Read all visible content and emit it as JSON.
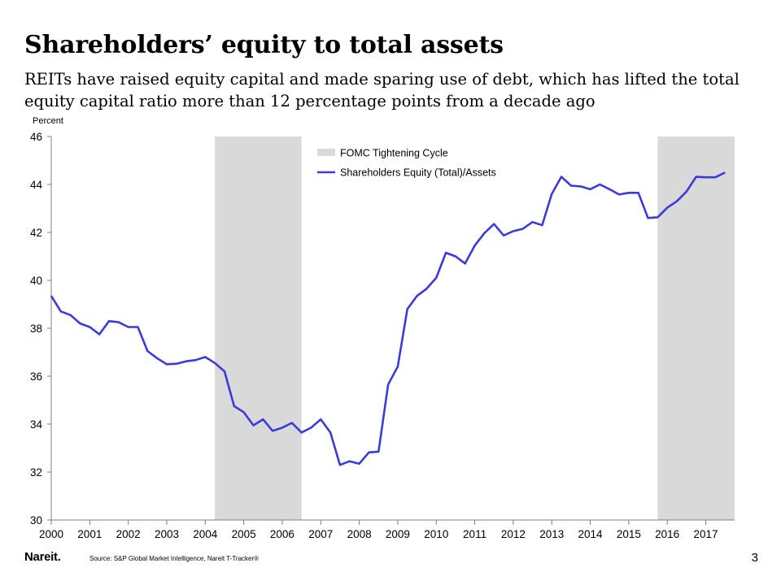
{
  "header": {
    "title": "Shareholders’ equity to total assets",
    "subtitle": "REITs have raised equity capital and made sparing use of debt, which has lifted the total equity capital ratio more than 12 percentage points from a decade ago"
  },
  "chart_data": {
    "type": "line",
    "title": "",
    "ylabel": "Percent",
    "xlabel": "",
    "ylim": [
      30,
      46
    ],
    "xlim": [
      2000,
      2017.75
    ],
    "yticks": [
      30,
      32,
      34,
      36,
      38,
      40,
      42,
      44,
      46
    ],
    "xtick_labels": [
      "2000",
      "2001",
      "2002",
      "2003",
      "2004",
      "2005",
      "2006",
      "2007",
      "2008",
      "2009",
      "2010",
      "2011",
      "2012",
      "2013",
      "2014",
      "2015",
      "2016",
      "2017"
    ],
    "grid": false,
    "legend_placement": "top, inside plot",
    "legend": [
      {
        "label": "FOMC Tightening Cycle",
        "kind": "shaded",
        "color": "#d9d9d9"
      },
      {
        "label": "Shareholders Equity (Total)/Assets",
        "kind": "line",
        "color": "#3b3bdb"
      }
    ],
    "shaded_periods": [
      {
        "name": "FOMC Tightening Cycle",
        "start": 2004.25,
        "end": 2006.5
      },
      {
        "name": "FOMC Tightening Cycle",
        "start": 2015.75,
        "end": 2017.75
      }
    ],
    "series": [
      {
        "name": "Shareholders Equity (Total)/Assets",
        "color": "#3b3bdb",
        "points": [
          [
            2000.0,
            39.35
          ],
          [
            2000.25,
            38.7
          ],
          [
            2000.5,
            38.55
          ],
          [
            2000.75,
            38.2
          ],
          [
            2001.0,
            38.05
          ],
          [
            2001.25,
            37.75
          ],
          [
            2001.5,
            38.3
          ],
          [
            2001.75,
            38.25
          ],
          [
            2002.0,
            38.05
          ],
          [
            2002.25,
            38.05
          ],
          [
            2002.5,
            37.05
          ],
          [
            2002.75,
            36.75
          ],
          [
            2003.0,
            36.5
          ],
          [
            2003.25,
            36.52
          ],
          [
            2003.5,
            36.62
          ],
          [
            2003.75,
            36.67
          ],
          [
            2004.0,
            36.8
          ],
          [
            2004.25,
            36.55
          ],
          [
            2004.5,
            36.2
          ],
          [
            2004.75,
            34.75
          ],
          [
            2005.0,
            34.5
          ],
          [
            2005.25,
            33.95
          ],
          [
            2005.5,
            34.2
          ],
          [
            2005.75,
            33.72
          ],
          [
            2006.0,
            33.85
          ],
          [
            2006.25,
            34.05
          ],
          [
            2006.5,
            33.65
          ],
          [
            2006.75,
            33.85
          ],
          [
            2007.0,
            34.2
          ],
          [
            2007.25,
            33.65
          ],
          [
            2007.5,
            32.3
          ],
          [
            2007.75,
            32.45
          ],
          [
            2008.0,
            32.35
          ],
          [
            2008.25,
            32.82
          ],
          [
            2008.5,
            32.85
          ],
          [
            2008.75,
            35.65
          ],
          [
            2009.0,
            36.4
          ],
          [
            2009.25,
            38.8
          ],
          [
            2009.5,
            39.35
          ],
          [
            2009.75,
            39.65
          ],
          [
            2010.0,
            40.1
          ],
          [
            2010.25,
            41.15
          ],
          [
            2010.5,
            41.0
          ],
          [
            2010.75,
            40.7
          ],
          [
            2011.0,
            41.45
          ],
          [
            2011.25,
            41.97
          ],
          [
            2011.5,
            42.35
          ],
          [
            2011.75,
            41.87
          ],
          [
            2012.0,
            42.05
          ],
          [
            2012.25,
            42.15
          ],
          [
            2012.5,
            42.43
          ],
          [
            2012.75,
            42.3
          ],
          [
            2013.0,
            43.6
          ],
          [
            2013.25,
            44.32
          ],
          [
            2013.5,
            43.95
          ],
          [
            2013.75,
            43.92
          ],
          [
            2014.0,
            43.8
          ],
          [
            2014.25,
            44.0
          ],
          [
            2014.5,
            43.8
          ],
          [
            2014.75,
            43.58
          ],
          [
            2015.0,
            43.65
          ],
          [
            2015.25,
            43.65
          ],
          [
            2015.5,
            42.6
          ],
          [
            2015.75,
            42.63
          ],
          [
            2016.0,
            43.03
          ],
          [
            2016.25,
            43.3
          ],
          [
            2016.5,
            43.7
          ],
          [
            2016.75,
            44.32
          ],
          [
            2017.0,
            44.3
          ],
          [
            2017.25,
            44.3
          ],
          [
            2017.5,
            44.5
          ]
        ]
      }
    ]
  },
  "footer": {
    "logo": "Nareit.",
    "source": "Source: S&P Global Market Intelligence, Nareit T-Tracker®",
    "page_number": "3"
  }
}
